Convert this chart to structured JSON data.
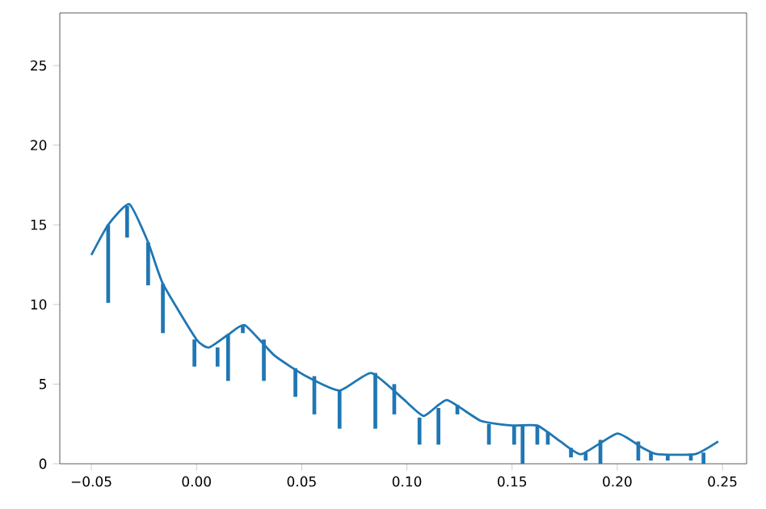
{
  "chart_data": {
    "type": "bar",
    "xlim": [
      -0.065,
      0.2615
    ],
    "ylim": [
      0,
      28.3
    ],
    "xticks": [
      {
        "value": -0.05,
        "label": "−0.05"
      },
      {
        "value": 0,
        "label": "0.00"
      },
      {
        "value": 0.05,
        "label": "0.05"
      },
      {
        "value": 0.1,
        "label": "0.10"
      },
      {
        "value": 0.15,
        "label": "0.15"
      },
      {
        "value": 0.2,
        "label": "0.20"
      },
      {
        "value": 0.25,
        "label": "0.25"
      }
    ],
    "yticks": [
      0,
      5,
      10,
      15,
      20,
      25
    ],
    "series": [
      {
        "color": "#1f77b4",
        "x": [
          -0.042,
          -0.033,
          -0.023,
          -0.016,
          -0.001,
          0.01,
          0.015,
          0.022,
          0.032,
          0.047,
          0.056,
          0.068,
          0.085,
          0.094,
          0.106,
          0.115,
          0.124,
          0.139,
          0.151,
          0.155,
          0.162,
          0.167,
          0.178,
          0.185,
          0.192,
          0.21,
          0.216,
          0.224,
          0.235,
          0.241
        ],
        "base": [
          10.1,
          14.2,
          11.2,
          8.2,
          6.1,
          6.1,
          5.2,
          8.2,
          5.2,
          4.2,
          3.1,
          2.2,
          2.2,
          3.1,
          1.2,
          1.2,
          3.1,
          1.2,
          1.2,
          0,
          1.2,
          1.2,
          0.4,
          0.2,
          0,
          0.2,
          0.2,
          0.2,
          0.2,
          0
        ],
        "values": [
          4.9,
          2.0,
          2.7,
          3.1,
          1.7,
          1.2,
          2.9,
          0.5,
          2.6,
          1.8,
          2.4,
          2.4,
          3.5,
          1.9,
          1.7,
          2.3,
          0.6,
          1.3,
          1.2,
          2.4,
          1.2,
          0.8,
          0.6,
          0.5,
          1.5,
          1.2,
          0.5,
          0.4,
          0.4,
          0.7
        ]
      },
      {
        "type": "line",
        "color": "#1f77b4",
        "x": [
          -0.05,
          -0.042,
          -0.032,
          -0.023,
          -0.016,
          0.0,
          0.006,
          0.015,
          0.023,
          0.037,
          0.052,
          0.068,
          0.083,
          0.098,
          0.108,
          0.119,
          0.135,
          0.15,
          0.162,
          0.173,
          0.183,
          0.2,
          0.212,
          0.219,
          0.237,
          0.248
        ],
        "values": [
          13.1,
          15.0,
          16.3,
          13.9,
          11.3,
          7.8,
          7.3,
          8.1,
          8.7,
          6.8,
          5.5,
          4.6,
          5.7,
          4.1,
          3.0,
          4.0,
          2.7,
          2.4,
          2.4,
          1.4,
          0.6,
          1.9,
          1.0,
          0.6,
          0.6,
          1.4
        ]
      }
    ]
  }
}
